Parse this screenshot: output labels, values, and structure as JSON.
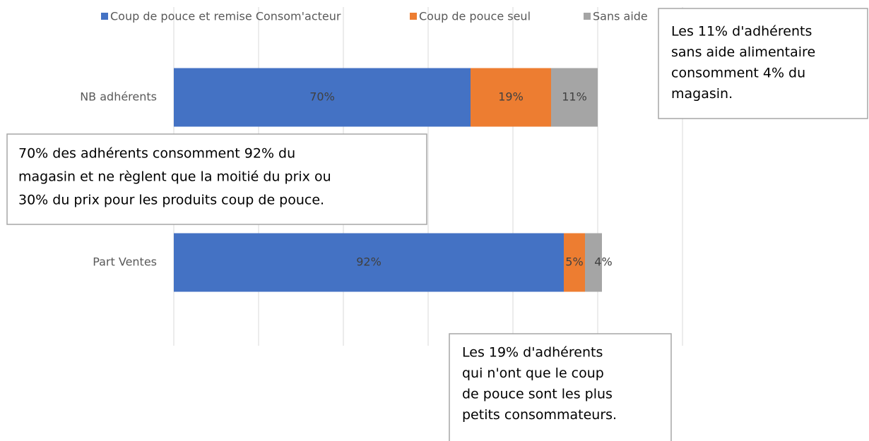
{
  "chart_data": {
    "type": "bar",
    "orientation": "horizontal",
    "stacked": true,
    "categories": [
      "NB adhérents",
      "Part Ventes"
    ],
    "series": [
      {
        "name": "Coup de pouce et remise Consom'acteur",
        "color": "#4472c4",
        "values": [
          70,
          92
        ],
        "value_labels": [
          "70%",
          "92%"
        ]
      },
      {
        "name": "Coup de pouce seul",
        "color": "#ed7d31",
        "values": [
          19,
          5
        ],
        "value_labels": [
          "19%",
          "5%"
        ]
      },
      {
        "name": "Sans aide",
        "color": "#a5a5a5",
        "values": [
          11,
          4
        ],
        "value_labels": [
          "11%",
          "4%"
        ]
      }
    ],
    "xlim": [
      0,
      120
    ],
    "xticks": [
      0,
      20,
      40,
      60,
      80,
      100,
      120
    ],
    "grid": true,
    "legend": "top",
    "annotations": [
      [
        "Les  11% d'adhérents",
        "sans aide alimentaire",
        "consomment 4% du",
        "magasin."
      ],
      [
        "70% des adhérents consomment 92% du",
        "magasin et ne règlent que la moitié du prix ou",
        "30% du prix pour les produits coup de pouce."
      ],
      [
        "Les 19% d'adhérents",
        "qui n'ont que le coup",
        "de pouce sont les plus",
        "petits consommateurs."
      ]
    ]
  }
}
